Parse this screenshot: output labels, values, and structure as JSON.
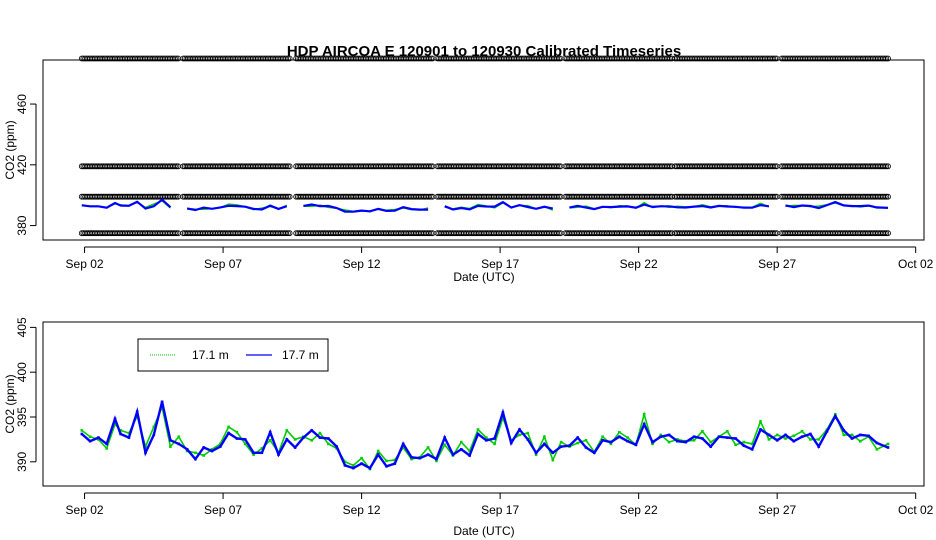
{
  "chart_data": [
    {
      "type": "scatter",
      "title": "HDP   AIRCOA  E    120901  to  120930   Calibrated Timeseries",
      "xlabel": "Date (UTC)",
      "ylabel": "CO2 (ppm)",
      "x_ticks": [
        "Sep 02",
        "Sep 07",
        "Sep 12",
        "Sep 17",
        "Sep 22",
        "Sep 27",
        "Oct 02"
      ],
      "x_tick_days": [
        2,
        7,
        12,
        17,
        22,
        27,
        32
      ],
      "xlim": [
        0.5,
        32.3
      ],
      "y_ticks": [
        380,
        420,
        460
      ],
      "ylim": [
        370.5,
        489
      ],
      "data_start_day": 1.9,
      "data_end_day": 31.0,
      "gaps_days": [
        [
          5.4,
          5.5
        ],
        [
          9.4,
          9.6
        ],
        [
          14.6,
          14.7
        ],
        [
          19.2,
          19.3
        ],
        [
          23.2,
          23.3
        ],
        [
          27.0,
          27.1
        ]
      ],
      "calibration_levels": [
        375,
        399,
        419,
        490
      ],
      "calibration_color": "#000000",
      "series": [
        {
          "name": "17.1 m",
          "color": "#00cc00",
          "values": [
            393,
            392.5,
            390.5,
            392
          ]
        },
        {
          "name": "17.7 m",
          "color": "#0000ff",
          "values": [
            393,
            392.5,
            390.5,
            392
          ]
        }
      ]
    },
    {
      "type": "line",
      "xlabel": "Date (UTC)",
      "ylabel": "CO2 (ppm)",
      "x_ticks": [
        "Sep 02",
        "Sep 07",
        "Sep 12",
        "Sep 17",
        "Sep 22",
        "Sep 27",
        "Oct 02"
      ],
      "x_tick_days": [
        2,
        7,
        12,
        17,
        22,
        27,
        32
      ],
      "xlim": [
        0.5,
        32.3
      ],
      "y_ticks": [
        390,
        395,
        400,
        405
      ],
      "ylim": [
        387.3,
        405.6
      ],
      "legend": {
        "placement": "top-left",
        "entries": [
          "17.1 m",
          "17.7 m"
        ]
      },
      "series": [
        {
          "name": "17.1 m",
          "color": "#00cc00",
          "x": [
            1.9,
            2.2,
            2.5,
            2.8,
            3.1,
            3.3,
            3.6,
            3.9,
            4.2,
            4.5,
            4.8,
            5.1,
            5.4,
            5.7,
            6.0,
            6.3,
            6.6,
            6.9,
            7.2,
            7.5,
            7.8,
            8.1,
            8.4,
            8.7,
            9.0,
            9.3,
            9.6,
            9.9,
            10.2,
            10.5,
            10.8,
            11.1,
            11.4,
            11.7,
            12.0,
            12.3,
            12.6,
            12.9,
            13.2,
            13.5,
            13.8,
            14.1,
            14.4,
            14.7,
            15.0,
            15.3,
            15.6,
            15.9,
            16.2,
            16.5,
            16.8,
            17.1,
            17.4,
            17.7,
            18.0,
            18.3,
            18.6,
            18.9,
            19.2,
            19.5,
            19.8,
            20.1,
            20.4,
            20.7,
            21.0,
            21.3,
            21.6,
            21.9,
            22.2,
            22.5,
            22.8,
            23.1,
            23.4,
            23.7,
            24.0,
            24.3,
            24.6,
            24.9,
            25.2,
            25.5,
            25.8,
            26.1,
            26.4,
            26.7,
            27.0,
            27.3,
            27.6,
            27.9,
            28.2,
            28.5,
            28.8,
            29.1,
            29.4,
            29.7,
            30.0,
            30.3,
            30.6,
            31.0
          ],
          "values": [
            393.5,
            392.8,
            392.5,
            391.5,
            394.2,
            393.5,
            393.2,
            395.1,
            391.7,
            393.9,
            396.1,
            391.7,
            392.8,
            391.2,
            391.0,
            390.7,
            391.4,
            392.0,
            393.9,
            393.3,
            392.0,
            390.8,
            391.5,
            392.4,
            391.0,
            393.5,
            392.5,
            392.8,
            392.4,
            393.2,
            392.0,
            391.5,
            390.0,
            389.6,
            390.4,
            389.2,
            391.2,
            390.1,
            390.2,
            391.6,
            390.3,
            390.5,
            391.6,
            390.1,
            391.9,
            390.7,
            392.2,
            391.2,
            393.6,
            392.7,
            392.0,
            394.9,
            392.4,
            393.0,
            393.2,
            390.8,
            392.8,
            390.2,
            392.2,
            391.7,
            392.1,
            392.4,
            391.1,
            392.8,
            392.0,
            393.3,
            392.7,
            391.9,
            395.3,
            392.0,
            393.0,
            392.2,
            392.5,
            392.3,
            392.4,
            393.4,
            392.2,
            392.8,
            393.4,
            391.9,
            392.2,
            392.0,
            394.5,
            392.5,
            393.0,
            392.6,
            392.9,
            393.4,
            392.5,
            392.5,
            393.6,
            395.3,
            393.0,
            393.0,
            392.3,
            392.8,
            391.4,
            392.0
          ]
        },
        {
          "name": "17.7 m",
          "color": "#0000ff",
          "x": [
            1.9,
            2.2,
            2.5,
            2.8,
            3.1,
            3.3,
            3.6,
            3.9,
            4.2,
            4.5,
            4.8,
            5.1,
            5.4,
            5.7,
            6.0,
            6.3,
            6.6,
            6.9,
            7.2,
            7.5,
            7.8,
            8.1,
            8.4,
            8.7,
            9.0,
            9.3,
            9.6,
            9.9,
            10.2,
            10.5,
            10.8,
            11.1,
            11.4,
            11.7,
            12.0,
            12.3,
            12.6,
            12.9,
            13.2,
            13.5,
            13.8,
            14.1,
            14.4,
            14.7,
            15.0,
            15.3,
            15.6,
            15.9,
            16.2,
            16.5,
            16.8,
            17.1,
            17.4,
            17.7,
            18.0,
            18.3,
            18.6,
            18.9,
            19.2,
            19.5,
            19.8,
            20.1,
            20.4,
            20.7,
            21.0,
            21.3,
            21.6,
            21.9,
            22.2,
            22.5,
            22.8,
            23.1,
            23.4,
            23.7,
            24.0,
            24.3,
            24.6,
            24.9,
            25.2,
            25.5,
            25.8,
            26.1,
            26.4,
            26.7,
            27.0,
            27.3,
            27.6,
            27.9,
            28.2,
            28.5,
            28.8,
            29.1,
            29.4,
            29.7,
            30.0,
            30.3,
            30.6,
            31.0
          ],
          "values": [
            393.1,
            392.3,
            392.7,
            392.0,
            394.8,
            393.1,
            392.7,
            395.6,
            391.0,
            393.0,
            396.7,
            392.4,
            392.0,
            391.4,
            390.3,
            391.6,
            391.2,
            391.7,
            393.2,
            392.6,
            392.5,
            391.0,
            391.0,
            393.3,
            390.8,
            392.5,
            391.6,
            392.7,
            393.5,
            392.7,
            392.6,
            391.7,
            389.6,
            389.3,
            389.8,
            389.3,
            390.8,
            389.5,
            389.8,
            392.0,
            390.5,
            390.4,
            390.8,
            390.3,
            392.7,
            390.8,
            391.4,
            390.7,
            393.1,
            392.4,
            392.6,
            395.5,
            392.1,
            393.6,
            392.5,
            391.0,
            392.0,
            391.0,
            391.7,
            391.8,
            392.7,
            391.6,
            391.0,
            392.4,
            392.2,
            392.8,
            392.3,
            391.9,
            394.2,
            392.2,
            392.8,
            393.0,
            392.3,
            392.2,
            392.8,
            392.6,
            391.7,
            392.8,
            392.7,
            392.6,
            391.8,
            391.4,
            393.6,
            393.0,
            392.4,
            393.0,
            392.3,
            392.8,
            393.1,
            391.7,
            393.4,
            395.1,
            393.5,
            392.6,
            393.0,
            392.9,
            392.1,
            391.6
          ]
        }
      ]
    }
  ]
}
